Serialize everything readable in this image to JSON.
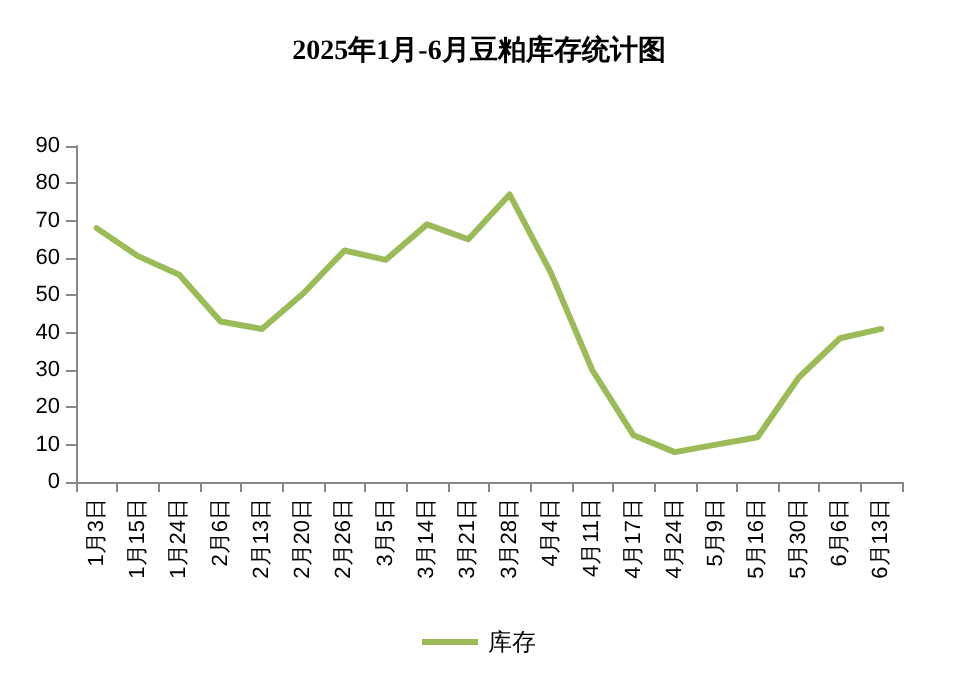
{
  "chart_data": {
    "type": "line",
    "title": "2025年1月-6月豆粕库存统计图",
    "categories": [
      "1月3日",
      "1月15日",
      "1月24日",
      "2月6日",
      "2月13日",
      "2月20日",
      "2月26日",
      "3月5日",
      "3月14日",
      "3月21日",
      "3月28日",
      "4月4日",
      "4月11日",
      "4月17日",
      "4月24日",
      "5月9日",
      "5月16日",
      "5月30日",
      "6月6日",
      "6月13日"
    ],
    "series": [
      {
        "name": "库存",
        "color": "#9bbb59",
        "values": [
          68,
          60.5,
          55.5,
          43,
          41,
          50.5,
          62,
          59.5,
          69,
          65,
          77,
          56,
          30,
          12.5,
          8,
          10,
          12,
          28,
          38.5,
          41
        ]
      }
    ],
    "ylim": [
      0,
      90
    ],
    "yticks": [
      0,
      10,
      20,
      30,
      40,
      50,
      60,
      70,
      80,
      90
    ],
    "grid": false,
    "legend": "bottom",
    "marker": "none",
    "line_style": "solid"
  }
}
